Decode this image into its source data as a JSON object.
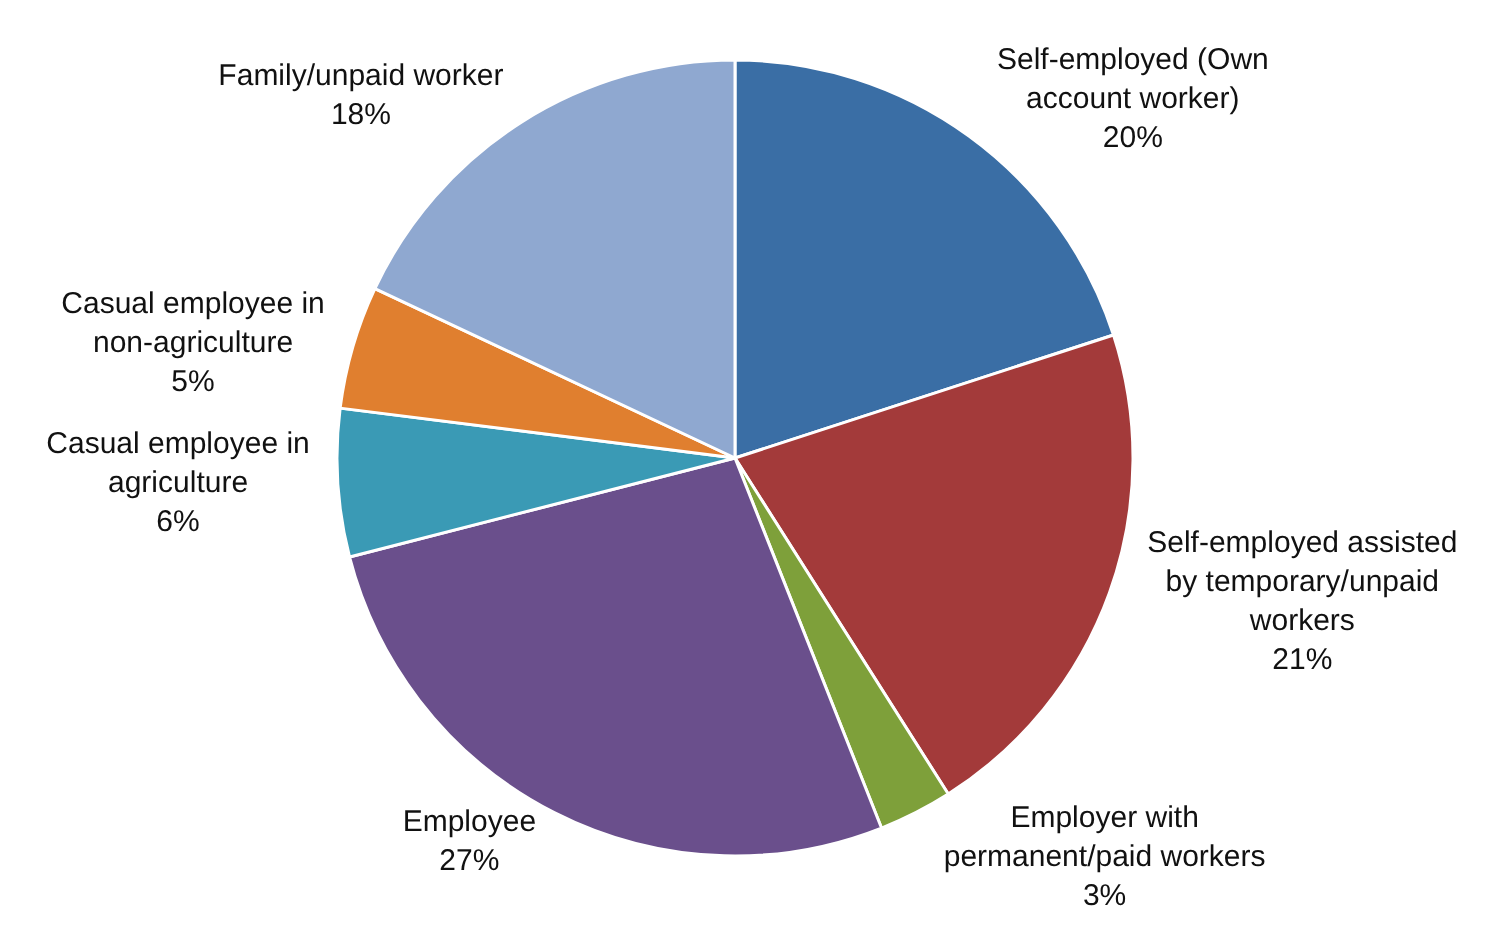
{
  "chart_data": {
    "type": "pie",
    "categories": [
      "Self-employed (Own account worker)",
      "Self-employed assisted by temporary/unpaid workers",
      "Employer with permanent/paid workers",
      "Employee",
      "Casual employee in agriculture",
      "Casual employee in non-agriculture",
      "Family/unpaid worker"
    ],
    "values": [
      20,
      21,
      3,
      27,
      6,
      5,
      18
    ],
    "value_labels": [
      "20%",
      "21%",
      "3%",
      "27%",
      "6%",
      "5%",
      "18%"
    ],
    "colors": [
      "#3a6ea5",
      "#a33a3a",
      "#7ea03a",
      "#6a4f8c",
      "#3a9ab5",
      "#e07f2f",
      "#8fa8d0"
    ],
    "legend": false
  }
}
